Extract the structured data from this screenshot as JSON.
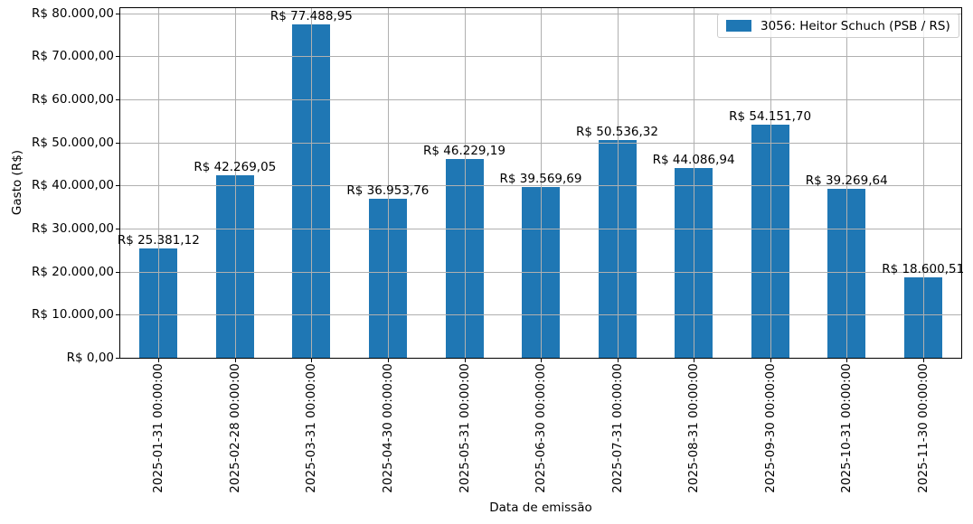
{
  "chart_data": {
    "type": "bar",
    "title": "",
    "xlabel": "Data de emissão",
    "ylabel": "Gasto (R$)",
    "legend_label": "3056: Heitor Schuch (PSB / RS)",
    "legend_position": "upper right",
    "grid": true,
    "categories": [
      "2025-01-31 00:00:00",
      "2025-02-28 00:00:00",
      "2025-03-31 00:00:00",
      "2025-04-30 00:00:00",
      "2025-05-31 00:00:00",
      "2025-06-30 00:00:00",
      "2025-07-31 00:00:00",
      "2025-08-31 00:00:00",
      "2025-09-30 00:00:00",
      "2025-10-31 00:00:00",
      "2025-11-30 00:00:00"
    ],
    "values": [
      25381.12,
      42269.05,
      77488.95,
      36953.76,
      46229.19,
      39569.69,
      50536.32,
      44086.94,
      54151.7,
      39269.64,
      18600.51
    ],
    "bar_labels": [
      "R$ 25.381,12",
      "R$ 42.269,05",
      "R$ 77.488,95",
      "R$ 36.953,76",
      "R$ 46.229,19",
      "R$ 39.569,69",
      "R$ 50.536,32",
      "R$ 44.086,94",
      "R$ 54.151,70",
      "R$ 39.269,64",
      "R$ 18.600,51"
    ],
    "y_tick_values": [
      0,
      10000,
      20000,
      30000,
      40000,
      50000,
      60000,
      70000,
      80000
    ],
    "y_tick_labels": [
      "R$ 0,00",
      "R$ 10.000,00",
      "R$ 20.000,00",
      "R$ 30.000,00",
      "R$ 40.000,00",
      "R$ 50.000,00",
      "R$ 60.000,00",
      "R$ 70.000,00",
      "R$ 80.000,00"
    ],
    "ylim": [
      0,
      81363
    ],
    "colors": {
      "bar": "#1f77b4",
      "grid": "#b0b0b0",
      "spine": "#000000",
      "legend_border": "#cccccc"
    }
  }
}
